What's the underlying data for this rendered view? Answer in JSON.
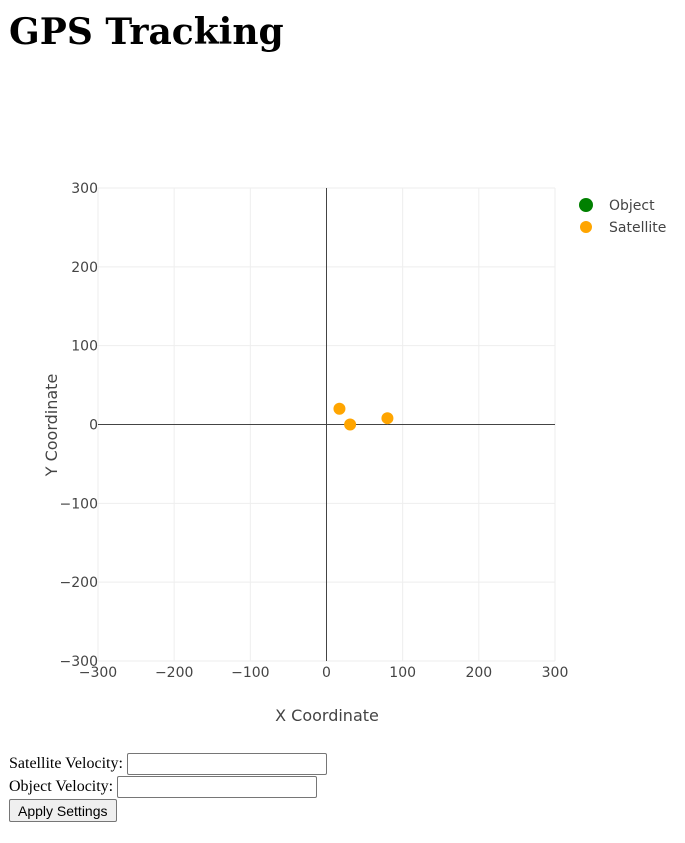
{
  "page": {
    "title": "GPS Tracking"
  },
  "chart_data": {
    "type": "scatter",
    "title": "",
    "xlabel": "X Coordinate",
    "ylabel": "Y Coordinate",
    "xlim": [
      -300,
      300
    ],
    "ylim": [
      -300,
      300
    ],
    "xticks": [
      -300,
      -200,
      -100,
      0,
      100,
      200,
      300
    ],
    "yticks": [
      -300,
      -200,
      -100,
      0,
      100,
      200,
      300
    ],
    "xtick_labels": [
      "−300",
      "−200",
      "−100",
      "0",
      "100",
      "200",
      "300"
    ],
    "ytick_labels": [
      "−300",
      "−200",
      "−100",
      "0",
      "100",
      "200",
      "300"
    ],
    "grid": true,
    "legend_position": "top-right",
    "series": [
      {
        "name": "Object",
        "color": "#008000",
        "points": []
      },
      {
        "name": "Satellite",
        "color": "#FFA500",
        "points": [
          [
            17,
            20
          ],
          [
            31,
            0
          ],
          [
            80,
            8
          ]
        ]
      }
    ]
  },
  "controls": {
    "satellite_velocity_label": "Satellite Velocity:",
    "satellite_velocity_value": "",
    "object_velocity_label": "Object Velocity:",
    "object_velocity_value": "",
    "apply_label": "Apply Settings"
  }
}
